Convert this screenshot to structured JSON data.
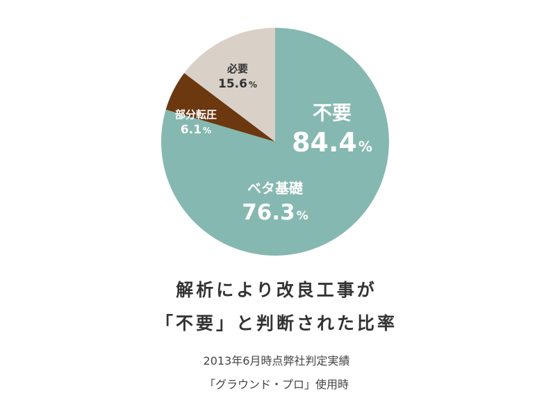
{
  "chart_data": {
    "type": "pie",
    "slices": [
      {
        "label": "不要",
        "value": 84.4,
        "value_text": "84.4",
        "unit": "%",
        "color": "#85b8b1",
        "text_color": "#ffffff"
      },
      {
        "label": "部分転圧",
        "value": 6.1,
        "value_text": "6.1",
        "unit": "%",
        "color": "#6b3810",
        "text_color": "#ffffff"
      },
      {
        "label": "必要",
        "value": 15.6,
        "value_text": "15.6",
        "unit": "%",
        "color": "#d9d0c7",
        "text_color": "#333333"
      }
    ],
    "sub_slice": {
      "parent": "不要",
      "label": "ベタ基礎",
      "value": 76.3,
      "value_text": "76.3",
      "unit": "%",
      "text_color": "#ffffff"
    },
    "legend": "none"
  },
  "caption": {
    "title_line1": "解析により改良工事が",
    "title_line2": "「不要」と判断された比率",
    "sub_line1": "2013年6月時点弊社判定実績",
    "sub_line2": "「グラウンド・プロ」使用時"
  }
}
